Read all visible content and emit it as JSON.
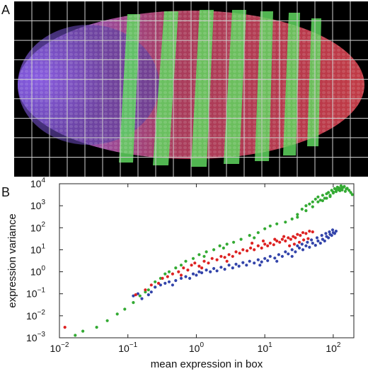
{
  "panel_a": {
    "label": "A",
    "grid": {
      "columns": 20,
      "rows": 9,
      "color": "#cfcfcf"
    },
    "colors": {
      "background": "#000000",
      "blue_region": "#7a4fd6",
      "red_region": "#c43a4a",
      "green_stripes": "#6be86b"
    },
    "stripe_count": 7
  },
  "panel_b": {
    "label": "B"
  },
  "chart_data": {
    "type": "scatter",
    "xlabel": "mean expression in box",
    "ylabel": "expression variance",
    "xscale": "log",
    "yscale": "log",
    "xlim": [
      0.01,
      200
    ],
    "ylim": [
      0.001,
      10000
    ],
    "x_ticks": [
      {
        "value": 0.01,
        "base": "10",
        "exp": "−2"
      },
      {
        "value": 0.1,
        "base": "10",
        "exp": "−1"
      },
      {
        "value": 1,
        "base": "10",
        "exp": "0"
      },
      {
        "value": 10,
        "base": "10",
        "exp": "1"
      },
      {
        "value": 100,
        "base": "10",
        "exp": "2"
      }
    ],
    "y_ticks": [
      {
        "value": 0.001,
        "base": "10",
        "exp": "−3"
      },
      {
        "value": 0.01,
        "base": "10",
        "exp": "−2"
      },
      {
        "value": 0.1,
        "base": "10",
        "exp": "−1"
      },
      {
        "value": 1,
        "base": "10",
        "exp": "0"
      },
      {
        "value": 10,
        "base": "10",
        "exp": "1"
      },
      {
        "value": 100,
        "base": "10",
        "exp": "2"
      },
      {
        "value": 1000,
        "base": "10",
        "exp": "3"
      },
      {
        "value": 10000,
        "base": "10",
        "exp": "4"
      }
    ],
    "series": [
      {
        "color": "#33aa33",
        "points": [
          [
            0.017,
            0.0013
          ],
          [
            0.022,
            0.002
          ],
          [
            0.035,
            0.003
          ],
          [
            0.05,
            0.006
          ],
          [
            0.07,
            0.012
          ],
          [
            0.09,
            0.02
          ],
          [
            0.12,
            0.04
          ],
          [
            0.15,
            0.08
          ],
          [
            0.2,
            0.15
          ],
          [
            0.25,
            0.2
          ],
          [
            0.3,
            0.5
          ],
          [
            0.35,
            0.8
          ],
          [
            0.4,
            1.0
          ],
          [
            0.5,
            1.5
          ],
          [
            0.6,
            2.0
          ],
          [
            0.7,
            3.0
          ],
          [
            0.9,
            4.0
          ],
          [
            1.1,
            6.0
          ],
          [
            1.4,
            8.0
          ],
          [
            1.8,
            10.0
          ],
          [
            2.2,
            15.0
          ],
          [
            2.8,
            18.0
          ],
          [
            3.5,
            22.0
          ],
          [
            4.5,
            30.0
          ],
          [
            6.0,
            45.0
          ],
          [
            8.0,
            60.0
          ],
          [
            10,
            90
          ],
          [
            12,
            120
          ],
          [
            15,
            150
          ],
          [
            20,
            180
          ],
          [
            25,
            250
          ],
          [
            30,
            400
          ],
          [
            35,
            700
          ],
          [
            40,
            1000
          ],
          [
            45,
            1200
          ],
          [
            50,
            1500
          ],
          [
            55,
            2000
          ],
          [
            60,
            2500
          ],
          [
            65,
            1800
          ],
          [
            70,
            3000
          ],
          [
            75,
            2200
          ],
          [
            80,
            3500
          ],
          [
            85,
            4000
          ],
          [
            90,
            3000
          ],
          [
            95,
            5000
          ],
          [
            100,
            4200
          ],
          [
            105,
            6000
          ],
          [
            110,
            5500
          ],
          [
            115,
            7000
          ],
          [
            120,
            6500
          ],
          [
            125,
            4800
          ],
          [
            130,
            8000
          ],
          [
            135,
            5200
          ],
          [
            140,
            6800
          ],
          [
            145,
            7500
          ],
          [
            150,
            4500
          ],
          [
            155,
            5800
          ],
          [
            160,
            6200
          ],
          [
            170,
            5000
          ],
          [
            180,
            4000
          ],
          [
            190,
            3200
          ],
          [
            60,
            1500
          ],
          [
            70,
            1700
          ],
          [
            80,
            2200
          ],
          [
            90,
            2600
          ],
          [
            100,
            3800
          ],
          [
            110,
            4400
          ],
          [
            120,
            5200
          ],
          [
            130,
            6100
          ],
          [
            50,
            900
          ],
          [
            40,
            600
          ],
          [
            30,
            300
          ],
          [
            0.25,
            0.35
          ],
          [
            0.18,
            0.12
          ],
          [
            1.3,
            5.0
          ],
          [
            2.5,
            12.0
          ],
          [
            7.0,
            35.0
          ]
        ]
      },
      {
        "color": "#3344aa",
        "points": [
          [
            0.12,
            0.08
          ],
          [
            0.14,
            0.1
          ],
          [
            0.16,
            0.06
          ],
          [
            0.2,
            0.09
          ],
          [
            0.22,
            0.12
          ],
          [
            0.25,
            0.2
          ],
          [
            0.3,
            0.25
          ],
          [
            0.35,
            0.3
          ],
          [
            0.4,
            0.35
          ],
          [
            0.45,
            0.25
          ],
          [
            0.5,
            0.4
          ],
          [
            0.6,
            0.5
          ],
          [
            0.7,
            0.6
          ],
          [
            0.8,
            0.5
          ],
          [
            0.9,
            0.8
          ],
          [
            1.0,
            0.7
          ],
          [
            1.1,
            1.0
          ],
          [
            1.2,
            0.9
          ],
          [
            1.4,
            1.2
          ],
          [
            1.6,
            1.0
          ],
          [
            1.8,
            1.4
          ],
          [
            2.0,
            1.1
          ],
          [
            2.3,
            1.6
          ],
          [
            2.6,
            1.3
          ],
          [
            3.0,
            2.0
          ],
          [
            3.4,
            1.5
          ],
          [
            3.8,
            2.2
          ],
          [
            4.2,
            1.8
          ],
          [
            4.8,
            2.6
          ],
          [
            5.4,
            2.0
          ],
          [
            6.0,
            3.0
          ],
          [
            7.0,
            2.5
          ],
          [
            8.0,
            3.5
          ],
          [
            9.0,
            2.8
          ],
          [
            10,
            4.0
          ],
          [
            11,
            3.2
          ],
          [
            12,
            5.0
          ],
          [
            14,
            4.2
          ],
          [
            16,
            6.0
          ],
          [
            18,
            5.0
          ],
          [
            20,
            8.0
          ],
          [
            22,
            6.5
          ],
          [
            25,
            10
          ],
          [
            28,
            8.0
          ],
          [
            32,
            12
          ],
          [
            36,
            10
          ],
          [
            40,
            15
          ],
          [
            45,
            13
          ],
          [
            50,
            20
          ],
          [
            55,
            16
          ],
          [
            60,
            25
          ],
          [
            65,
            20
          ],
          [
            70,
            30
          ],
          [
            75,
            25
          ],
          [
            80,
            40
          ],
          [
            85,
            35
          ],
          [
            90,
            50
          ],
          [
            95,
            45
          ],
          [
            100,
            60
          ],
          [
            105,
            55
          ],
          [
            110,
            70
          ],
          [
            30,
            15
          ],
          [
            35,
            18
          ],
          [
            42,
            22
          ],
          [
            48,
            28
          ],
          [
            58,
            35
          ],
          [
            68,
            45
          ],
          [
            78,
            55
          ],
          [
            88,
            65
          ],
          [
            98,
            80
          ],
          [
            15,
            3.0
          ],
          [
            25,
            5.0
          ],
          [
            8.5,
            2.0
          ]
        ]
      },
      {
        "color": "#dd2222",
        "points": [
          [
            0.012,
            0.003
          ],
          [
            0.13,
            0.09
          ],
          [
            0.18,
            0.15
          ],
          [
            0.22,
            0.25
          ],
          [
            0.28,
            0.3
          ],
          [
            0.32,
            0.5
          ],
          [
            0.38,
            0.6
          ],
          [
            0.45,
            0.8
          ],
          [
            0.55,
            1.0
          ],
          [
            0.65,
            1.5
          ],
          [
            0.75,
            1.2
          ],
          [
            0.85,
            2.0
          ],
          [
            0.95,
            2.5
          ],
          [
            1.1,
            1.8
          ],
          [
            1.3,
            3.0
          ],
          [
            1.5,
            2.5
          ],
          [
            1.7,
            4.0
          ],
          [
            2.0,
            3.5
          ],
          [
            2.3,
            5.0
          ],
          [
            2.6,
            4.5
          ],
          [
            3.0,
            6.0
          ],
          [
            3.4,
            5.0
          ],
          [
            3.8,
            8.0
          ],
          [
            4.3,
            7.0
          ],
          [
            4.8,
            10
          ],
          [
            5.5,
            9.0
          ],
          [
            6.2,
            12
          ],
          [
            7.0,
            10
          ],
          [
            8.0,
            15
          ],
          [
            9.0,
            12
          ],
          [
            10,
            18
          ],
          [
            11,
            15
          ],
          [
            12,
            20
          ],
          [
            13.5,
            17
          ],
          [
            15,
            25
          ],
          [
            16.5,
            22
          ],
          [
            18,
            30
          ],
          [
            20,
            25
          ],
          [
            22,
            35
          ],
          [
            24,
            30
          ],
          [
            26,
            40
          ],
          [
            28,
            35
          ],
          [
            30,
            50
          ],
          [
            33,
            45
          ],
          [
            36,
            60
          ],
          [
            40,
            55
          ],
          [
            45,
            70
          ],
          [
            50,
            65
          ],
          [
            6.5,
            20
          ],
          [
            9.5,
            25
          ],
          [
            14,
            30
          ],
          [
            19,
            40
          ],
          [
            23,
            15
          ],
          [
            27,
            18
          ],
          [
            32,
            22
          ],
          [
            37,
            28
          ],
          [
            43,
            32
          ],
          [
            2.8,
            3.0
          ],
          [
            1.2,
            1.5
          ],
          [
            0.6,
            0.7
          ]
        ]
      }
    ]
  }
}
